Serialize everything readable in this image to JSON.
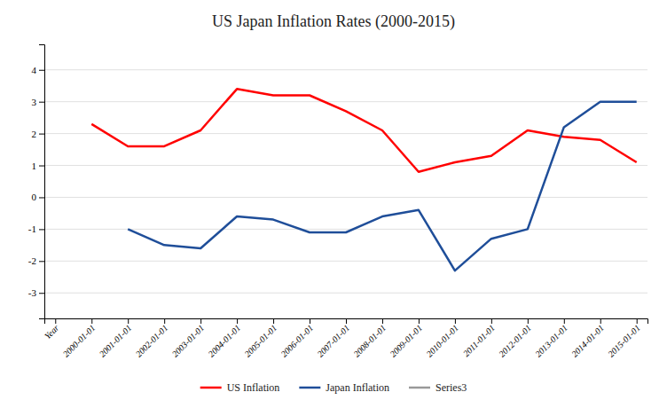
{
  "chart_data": {
    "type": "line",
    "title": "US Japan Inflation Rates (2000-2015)",
    "categories": [
      "Year",
      "2000-01-01",
      "2001-01-01",
      "2002-01-01",
      "2003-01-01",
      "2004-01-01",
      "2005-01-01",
      "2006-01-01",
      "2007-01-01",
      "2008-01-01",
      "2009-01-01",
      "2010-01-01",
      "2011-01-01",
      "2012-01-01",
      "2013-01-01",
      "2014-01-01",
      "2015-01-01"
    ],
    "series": [
      {
        "name": "US Inflation",
        "color": "#FF0000",
        "values": [
          null,
          2.3,
          1.6,
          1.6,
          2.1,
          3.4,
          3.2,
          3.2,
          2.7,
          2.1,
          0.8,
          1.1,
          1.3,
          2.1,
          1.9,
          1.8,
          1.1
        ]
      },
      {
        "name": "Japan Inflation",
        "color": "#1F4E99",
        "values": [
          null,
          null,
          -1.0,
          -1.5,
          -1.6,
          -0.6,
          -0.7,
          -1.1,
          -1.1,
          -0.6,
          -0.4,
          -2.3,
          -1.3,
          -1.0,
          2.2,
          3.0,
          3.0
        ]
      },
      {
        "name": "Series3",
        "color": "#999999",
        "values": [
          null,
          null,
          null,
          null,
          null,
          null,
          null,
          null,
          null,
          null,
          null,
          null,
          null,
          null,
          null,
          null,
          null
        ]
      }
    ],
    "ylim": [
      -3.8,
      4.8
    ],
    "yticks": [
      -3,
      -2,
      -1,
      0,
      1,
      2,
      3,
      4
    ],
    "grid": true,
    "legend": "bottom"
  }
}
